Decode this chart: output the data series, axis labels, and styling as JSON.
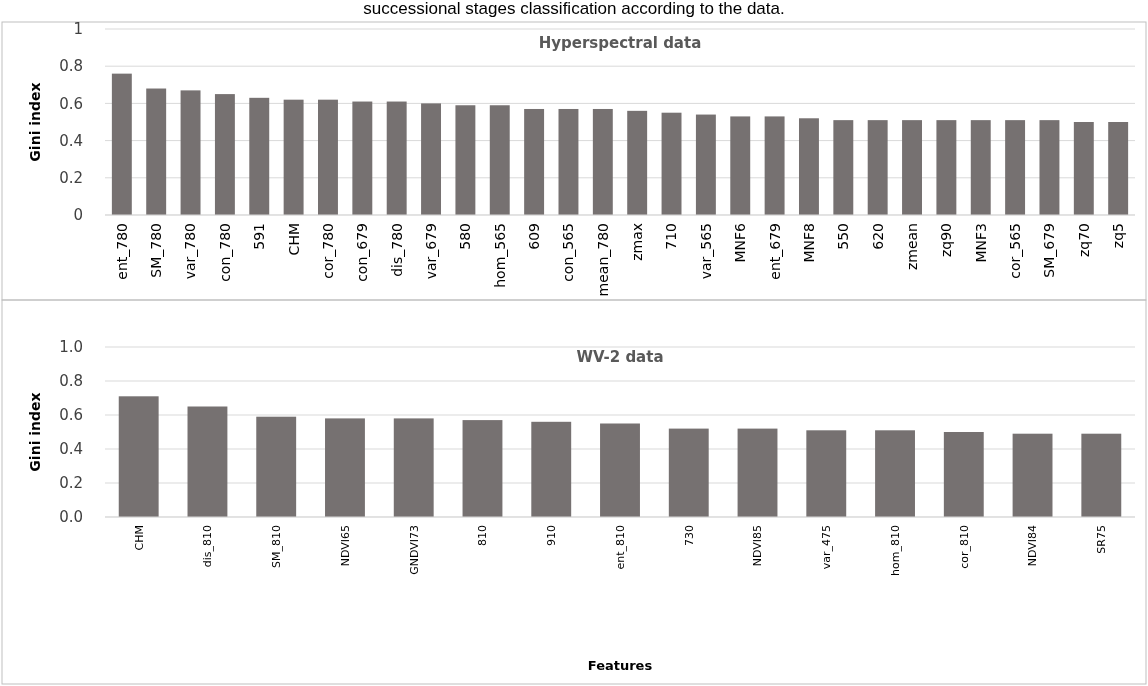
{
  "chart_data": [
    {
      "type": "bar",
      "title": "Hyperspectral data",
      "ylabel": "Gini index",
      "annotations": [
        "successional stages classification according to the data."
      ],
      "categories": [
        "ent_780",
        "SM_780",
        "var_780",
        "con_780",
        "591",
        "CHM",
        "cor_780",
        "con_679",
        "dis_780",
        "var_679",
        "580",
        "hom_565",
        "609",
        "con_565",
        "mean_780",
        "zmax",
        "710",
        "var_565",
        "MNF6",
        "ent_679",
        "MNF8",
        "550",
        "620",
        "zmean",
        "zq90",
        "MNF3",
        "cor_565",
        "SM_679",
        "zq70",
        "zq5"
      ],
      "values": [
        0.76,
        0.68,
        0.67,
        0.65,
        0.63,
        0.62,
        0.62,
        0.61,
        0.61,
        0.6,
        0.59,
        0.59,
        0.57,
        0.57,
        0.57,
        0.56,
        0.55,
        0.54,
        0.53,
        0.53,
        0.52,
        0.51,
        0.51,
        0.51,
        0.51,
        0.51,
        0.51,
        0.51,
        0.5,
        0.5
      ],
      "color": "#767171",
      "ylim": [
        0,
        1
      ],
      "yticks": [
        0,
        0.2,
        0.4,
        0.6,
        0.8,
        1
      ],
      "grid": "y"
    },
    {
      "type": "bar",
      "title": "WV-2 data",
      "ylabel": "Gini index",
      "xlabel": "Features",
      "categories": [
        "CHM",
        "dis_810",
        "SM_810",
        "NDVI65",
        "GNDVI73",
        "810",
        "910",
        "ent_810",
        "730",
        "NDVI85",
        "var_475",
        "hom_810",
        "cor_810",
        "NDVI84",
        "SR75"
      ],
      "values": [
        0.71,
        0.65,
        0.59,
        0.58,
        0.58,
        0.57,
        0.56,
        0.55,
        0.52,
        0.52,
        0.51,
        0.51,
        0.5,
        0.49,
        0.49
      ],
      "color": "#767171",
      "ylim": [
        0,
        1
      ],
      "yticks": [
        {
          "value": 0,
          "label": "0.0"
        },
        {
          "value": 0.2,
          "label": "0.2"
        },
        {
          "value": 0.4,
          "label": "0.4"
        },
        {
          "value": 0.6,
          "label": "0.6"
        },
        {
          "value": 0.8,
          "label": "0.8"
        },
        {
          "value": 1,
          "label": "1.0"
        }
      ],
      "grid": "y"
    }
  ]
}
